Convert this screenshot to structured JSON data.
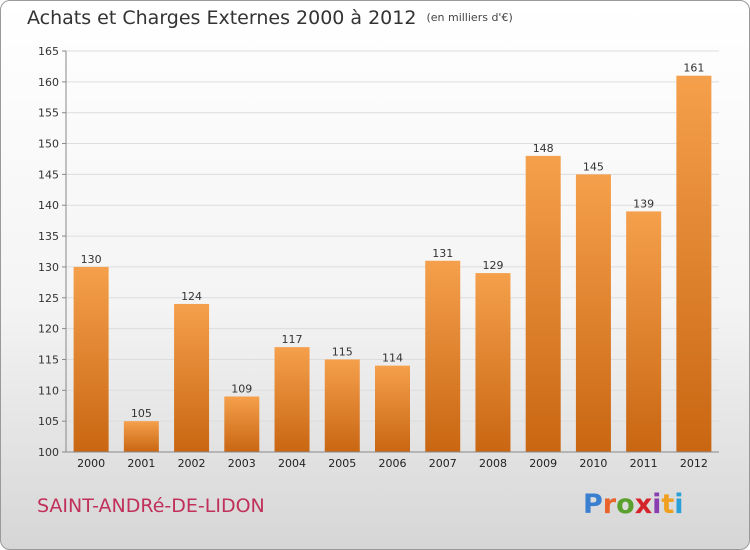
{
  "header": {
    "title": "Achats et Charges Externes 2000 à 2012",
    "unit": "(en milliers d'€)"
  },
  "footer": {
    "commune": "SAINT-ANDRé-DE-LIDON",
    "logo_letters": [
      "P",
      "r",
      "o",
      "x",
      "i",
      "t",
      "i"
    ],
    "logo_colors": [
      "#3a7fd0",
      "#e8642a",
      "#5aa02c",
      "#d4242a",
      "#8a3fb0",
      "#f0a020",
      "#2a9fd8"
    ]
  },
  "colors": {
    "bar_top": "#f5a04c",
    "bar_bottom": "#c96612",
    "grid": "#dddddd",
    "axis": "#888888"
  },
  "chart_data": {
    "type": "bar",
    "title": "Achats et Charges Externes 2000 à 2012",
    "subtitle": "(en milliers d'€)",
    "categories": [
      "2000",
      "2001",
      "2002",
      "2003",
      "2004",
      "2005",
      "2006",
      "2007",
      "2008",
      "2009",
      "2010",
      "2011",
      "2012"
    ],
    "values": [
      130,
      105,
      124,
      109,
      117,
      115,
      114,
      131,
      129,
      148,
      145,
      139,
      161
    ],
    "ylim": [
      100,
      165
    ],
    "yticks": [
      100,
      105,
      110,
      115,
      120,
      125,
      130,
      135,
      140,
      145,
      150,
      155,
      160,
      165
    ],
    "grid": true,
    "data_labels": true
  }
}
